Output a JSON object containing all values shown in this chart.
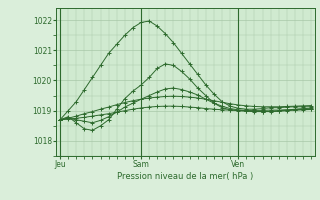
{
  "background_color": "#daeeda",
  "plot_bg_color": "#d0ead0",
  "grid_color": "#a8c8a8",
  "line_color": "#2d6a2d",
  "marker_color": "#2d6a2d",
  "xlabel": "Pression niveau de la mer( hPa )",
  "ylim": [
    1017.5,
    1022.4
  ],
  "yticks": [
    1018,
    1019,
    1020,
    1021,
    1022
  ],
  "xtick_labels": [
    "Jeu",
    "Sam",
    "Ven"
  ],
  "xtick_positions": [
    0,
    10,
    22
  ],
  "vline_positions": [
    0,
    10,
    22
  ],
  "n_points": 32,
  "lines": [
    [
      1018.7,
      1019.0,
      1019.3,
      1019.7,
      1020.1,
      1020.5,
      1020.9,
      1021.2,
      1021.5,
      1021.75,
      1021.92,
      1021.97,
      1021.8,
      1021.55,
      1021.25,
      1020.9,
      1020.55,
      1020.2,
      1019.85,
      1019.55,
      1019.3,
      1019.15,
      1019.08,
      1019.05,
      1019.05,
      1019.07,
      1019.1,
      1019.1,
      1019.12,
      1019.13,
      1019.13,
      1019.13
    ],
    [
      1018.7,
      1018.8,
      1018.6,
      1018.4,
      1018.35,
      1018.5,
      1018.7,
      1019.05,
      1019.4,
      1019.65,
      1019.85,
      1020.1,
      1020.4,
      1020.55,
      1020.5,
      1020.3,
      1020.05,
      1019.75,
      1019.5,
      1019.25,
      1019.1,
      1019.03,
      1019.0,
      1018.98,
      1018.97,
      1018.97,
      1018.98,
      1019.0,
      1019.02,
      1019.05,
      1019.07,
      1019.08
    ],
    [
      1018.7,
      1018.75,
      1018.7,
      1018.65,
      1018.6,
      1018.68,
      1018.8,
      1018.95,
      1019.12,
      1019.25,
      1019.38,
      1019.5,
      1019.62,
      1019.72,
      1019.75,
      1019.7,
      1019.62,
      1019.52,
      1019.38,
      1019.25,
      1019.15,
      1019.07,
      1019.03,
      1019.0,
      1018.98,
      1018.97,
      1018.97,
      1018.98,
      1019.0,
      1019.02,
      1019.03,
      1019.04
    ],
    [
      1018.7,
      1018.75,
      1018.82,
      1018.9,
      1018.97,
      1019.05,
      1019.12,
      1019.2,
      1019.27,
      1019.33,
      1019.38,
      1019.42,
      1019.45,
      1019.47,
      1019.48,
      1019.47,
      1019.45,
      1019.42,
      1019.38,
      1019.33,
      1019.28,
      1019.23,
      1019.19,
      1019.16,
      1019.14,
      1019.13,
      1019.13,
      1019.13,
      1019.14,
      1019.15,
      1019.16,
      1019.17
    ],
    [
      1018.7,
      1018.72,
      1018.75,
      1018.78,
      1018.82,
      1018.86,
      1018.9,
      1018.95,
      1019.0,
      1019.05,
      1019.09,
      1019.12,
      1019.14,
      1019.15,
      1019.15,
      1019.14,
      1019.12,
      1019.1,
      1019.07,
      1019.05,
      1019.03,
      1019.02,
      1019.01,
      1019.01,
      1019.01,
      1019.01,
      1019.02,
      1019.02,
      1019.03,
      1019.03,
      1019.04,
      1019.04
    ]
  ]
}
